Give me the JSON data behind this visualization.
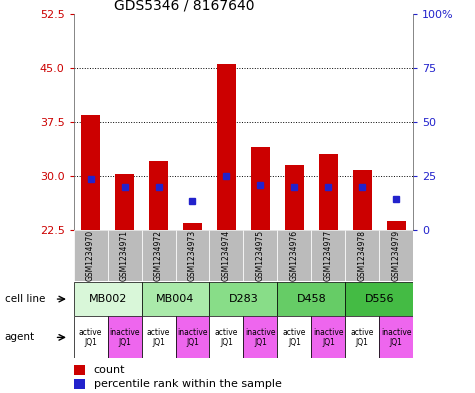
{
  "title": "GDS5346 / 8167640",
  "samples": [
    "GSM1234970",
    "GSM1234971",
    "GSM1234972",
    "GSM1234973",
    "GSM1234974",
    "GSM1234975",
    "GSM1234976",
    "GSM1234977",
    "GSM1234978",
    "GSM1234979"
  ],
  "bar_values": [
    38.5,
    30.2,
    32.0,
    23.5,
    45.5,
    34.0,
    31.5,
    33.0,
    30.8,
    23.8
  ],
  "bar_base": 22.5,
  "dot_values": [
    29.5,
    28.5,
    28.5,
    26.5,
    30.0,
    28.8,
    28.5,
    28.5,
    28.5,
    26.8
  ],
  "ylim_left": [
    22.5,
    52.5
  ],
  "ylim_right": [
    0,
    100
  ],
  "yticks_left": [
    22.5,
    30,
    37.5,
    45,
    52.5
  ],
  "yticks_right": [
    0,
    25,
    50,
    75,
    100
  ],
  "ytick_labels_right": [
    "0",
    "25",
    "50",
    "75",
    "100%"
  ],
  "bar_color": "#cc0000",
  "dot_color": "#2222cc",
  "cell_lines": [
    {
      "label": "MB002",
      "cols": [
        0,
        1
      ],
      "color": "#d9f7d9"
    },
    {
      "label": "MB004",
      "cols": [
        2,
        3
      ],
      "color": "#aaeaaa"
    },
    {
      "label": "D283",
      "cols": [
        4,
        5
      ],
      "color": "#88dd88"
    },
    {
      "label": "D458",
      "cols": [
        6,
        7
      ],
      "color": "#66cc66"
    },
    {
      "label": "D556",
      "cols": [
        8,
        9
      ],
      "color": "#44bb44"
    }
  ],
  "agent_active_color": "#ffffff",
  "agent_inactive_color": "#ee66ee",
  "grid_color": "#000000",
  "bar_width": 0.55,
  "bar_box_color": "#bbbbbb",
  "left_tick_color": "#cc0000",
  "right_tick_color": "#2222cc"
}
